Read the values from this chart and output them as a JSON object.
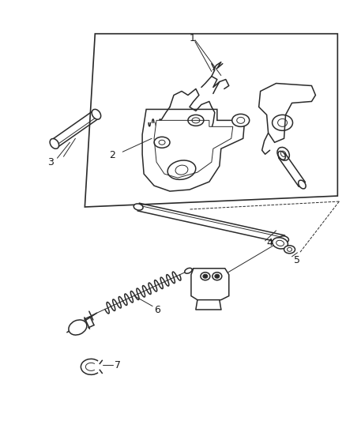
{
  "background_color": "#ffffff",
  "line_color": "#2a2a2a",
  "label_color": "#1a1a1a",
  "fig_width": 4.39,
  "fig_height": 5.33,
  "dpi": 100
}
